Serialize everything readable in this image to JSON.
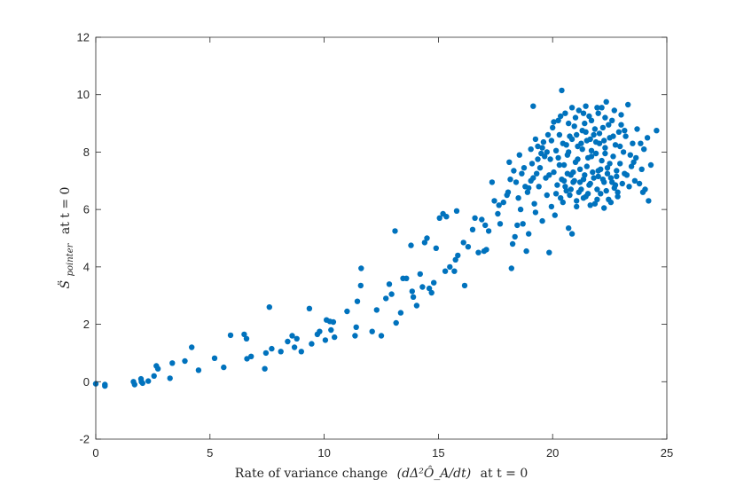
{
  "chart_data": {
    "type": "scatter",
    "title": "",
    "xlabel": "Rate of variance change",
    "xlabel_math": "(dΔ²Ô_A/dt)",
    "xlabel_suffix": "at t = 0",
    "ylabel_prefix": "S̈",
    "ylabel_sub": "pointer",
    "ylabel_suffix": "at t = 0",
    "xlim": [
      0,
      25
    ],
    "ylim": [
      -2,
      12
    ],
    "xticks": [
      "0",
      "5",
      "10",
      "15",
      "20",
      "25"
    ],
    "yticks": [
      "-2",
      "0",
      "2",
      "4",
      "6",
      "8",
      "10",
      "12"
    ],
    "grid": false,
    "marker_color": "#0072BD",
    "points": [
      [
        0.0,
        -0.07
      ],
      [
        0.4,
        -0.1
      ],
      [
        0.4,
        -0.15
      ],
      [
        1.65,
        0.0
      ],
      [
        1.7,
        -0.1
      ],
      [
        1.98,
        0.1
      ],
      [
        2.0,
        0.0
      ],
      [
        2.05,
        -0.05
      ],
      [
        2.3,
        0.02
      ],
      [
        2.55,
        0.2
      ],
      [
        2.65,
        0.55
      ],
      [
        2.72,
        0.45
      ],
      [
        3.25,
        0.12
      ],
      [
        3.35,
        0.65
      ],
      [
        3.9,
        0.72
      ],
      [
        4.2,
        1.2
      ],
      [
        4.5,
        0.4
      ],
      [
        5.2,
        0.82
      ],
      [
        5.6,
        0.5
      ],
      [
        5.9,
        1.62
      ],
      [
        6.5,
        1.65
      ],
      [
        6.6,
        1.5
      ],
      [
        6.62,
        0.8
      ],
      [
        6.8,
        0.88
      ],
      [
        7.4,
        0.45
      ],
      [
        7.45,
        1.0
      ],
      [
        7.6,
        2.6
      ],
      [
        7.7,
        1.15
      ],
      [
        8.1,
        1.05
      ],
      [
        8.4,
        1.4
      ],
      [
        8.6,
        1.6
      ],
      [
        8.7,
        1.2
      ],
      [
        8.8,
        1.5
      ],
      [
        9.0,
        1.05
      ],
      [
        9.35,
        2.55
      ],
      [
        9.45,
        1.32
      ],
      [
        9.7,
        1.65
      ],
      [
        9.8,
        1.75
      ],
      [
        10.05,
        1.45
      ],
      [
        10.1,
        2.15
      ],
      [
        10.25,
        2.1
      ],
      [
        10.3,
        1.8
      ],
      [
        10.4,
        2.08
      ],
      [
        10.45,
        1.55
      ],
      [
        11.0,
        2.45
      ],
      [
        11.35,
        1.6
      ],
      [
        11.4,
        1.9
      ],
      [
        11.45,
        2.8
      ],
      [
        11.6,
        3.35
      ],
      [
        11.62,
        3.95
      ],
      [
        12.1,
        1.75
      ],
      [
        12.3,
        2.5
      ],
      [
        12.5,
        1.6
      ],
      [
        12.7,
        2.9
      ],
      [
        12.85,
        3.4
      ],
      [
        12.95,
        3.05
      ],
      [
        13.1,
        5.25
      ],
      [
        13.15,
        2.05
      ],
      [
        13.35,
        2.4
      ],
      [
        13.45,
        3.6
      ],
      [
        13.6,
        3.6
      ],
      [
        13.8,
        4.75
      ],
      [
        13.85,
        3.15
      ],
      [
        13.9,
        2.95
      ],
      [
        14.05,
        2.65
      ],
      [
        14.2,
        3.75
      ],
      [
        14.3,
        3.3
      ],
      [
        14.4,
        4.85
      ],
      [
        14.5,
        5.0
      ],
      [
        14.6,
        3.25
      ],
      [
        14.7,
        3.1
      ],
      [
        14.8,
        3.45
      ],
      [
        14.9,
        4.65
      ],
      [
        15.05,
        5.7
      ],
      [
        15.2,
        5.85
      ],
      [
        15.3,
        3.85
      ],
      [
        15.35,
        5.75
      ],
      [
        15.5,
        4.0
      ],
      [
        15.7,
        3.85
      ],
      [
        15.75,
        4.25
      ],
      [
        15.8,
        5.95
      ],
      [
        15.85,
        4.4
      ],
      [
        16.1,
        4.85
      ],
      [
        16.15,
        3.35
      ],
      [
        16.3,
        4.7
      ],
      [
        16.5,
        5.3
      ],
      [
        16.6,
        5.7
      ],
      [
        16.75,
        4.5
      ],
      [
        16.9,
        5.65
      ],
      [
        17.0,
        4.55
      ],
      [
        17.05,
        5.45
      ],
      [
        17.1,
        4.6
      ],
      [
        17.2,
        5.25
      ],
      [
        17.35,
        6.95
      ],
      [
        17.45,
        6.3
      ],
      [
        17.6,
        5.85
      ],
      [
        17.65,
        6.15
      ],
      [
        17.7,
        5.5
      ],
      [
        17.85,
        6.25
      ],
      [
        18.0,
        6.5
      ],
      [
        18.1,
        7.65
      ],
      [
        18.2,
        3.95
      ],
      [
        18.25,
        4.8
      ],
      [
        18.35,
        5.05
      ],
      [
        18.45,
        5.45
      ],
      [
        18.5,
        6.4
      ],
      [
        18.55,
        7.9
      ],
      [
        18.6,
        6.0
      ],
      [
        18.7,
        5.5
      ],
      [
        18.75,
        7.45
      ],
      [
        18.8,
        6.8
      ],
      [
        18.85,
        4.55
      ],
      [
        18.9,
        6.6
      ],
      [
        18.95,
        5.15
      ],
      [
        19.05,
        7.0
      ],
      [
        19.1,
        7.6
      ],
      [
        19.15,
        9.6
      ],
      [
        19.2,
        6.2
      ],
      [
        19.25,
        5.9
      ],
      [
        19.3,
        7.25
      ],
      [
        19.35,
        8.2
      ],
      [
        19.4,
        6.8
      ],
      [
        19.5,
        7.95
      ],
      [
        19.55,
        5.6
      ],
      [
        19.6,
        8.35
      ],
      [
        19.7,
        7.1
      ],
      [
        19.75,
        6.5
      ],
      [
        19.8,
        8.6
      ],
      [
        19.85,
        4.5
      ],
      [
        19.9,
        7.75
      ],
      [
        19.95,
        6.1
      ],
      [
        20.0,
        8.85
      ],
      [
        20.05,
        7.3
      ],
      [
        20.1,
        5.8
      ],
      [
        20.15,
        8.05
      ],
      [
        20.2,
        6.85
      ],
      [
        20.25,
        9.1
      ],
      [
        20.3,
        7.55
      ],
      [
        20.35,
        6.4
      ],
      [
        20.4,
        10.15
      ],
      [
        20.45,
        8.3
      ],
      [
        20.5,
        7.0
      ],
      [
        20.55,
        9.35
      ],
      [
        20.6,
        6.65
      ],
      [
        20.65,
        7.9
      ],
      [
        20.7,
        5.35
      ],
      [
        20.75,
        8.55
      ],
      [
        20.8,
        7.2
      ],
      [
        20.85,
        5.15
      ],
      [
        20.9,
        6.95
      ],
      [
        20.95,
        8.9
      ],
      [
        21.0,
        7.65
      ],
      [
        21.05,
        6.3
      ],
      [
        21.1,
        8.2
      ],
      [
        21.15,
        9.45
      ],
      [
        21.2,
        7.4
      ],
      [
        21.25,
        6.7
      ],
      [
        21.3,
        8.75
      ],
      [
        21.35,
        7.05
      ],
      [
        21.4,
        9.0
      ],
      [
        21.45,
        6.45
      ],
      [
        21.5,
        8.4
      ],
      [
        21.55,
        7.8
      ],
      [
        21.6,
        9.25
      ],
      [
        21.65,
        6.9
      ],
      [
        21.7,
        8.05
      ],
      [
        21.75,
        7.3
      ],
      [
        21.8,
        8.6
      ],
      [
        21.85,
        6.2
      ],
      [
        21.9,
        7.95
      ],
      [
        21.95,
        9.55
      ],
      [
        22.0,
        7.15
      ],
      [
        22.05,
        8.3
      ],
      [
        22.1,
        6.55
      ],
      [
        22.15,
        7.7
      ],
      [
        22.2,
        8.85
      ],
      [
        22.25,
        6.95
      ],
      [
        22.3,
        8.15
      ],
      [
        22.35,
        9.75
      ],
      [
        22.4,
        7.45
      ],
      [
        22.45,
        6.35
      ],
      [
        22.5,
        8.5
      ],
      [
        22.55,
        7.1
      ],
      [
        22.6,
        9.1
      ],
      [
        22.65,
        7.85
      ],
      [
        22.7,
        6.75
      ],
      [
        22.75,
        8.25
      ],
      [
        22.8,
        7.35
      ],
      [
        22.85,
        6.6
      ],
      [
        22.9,
        8.7
      ],
      [
        22.95,
        7.6
      ],
      [
        23.0,
        9.3
      ],
      [
        23.05,
        6.9
      ],
      [
        23.1,
        8.0
      ],
      [
        23.15,
        7.25
      ],
      [
        23.2,
        8.55
      ],
      [
        23.3,
        9.65
      ],
      [
        23.35,
        6.8
      ],
      [
        23.4,
        7.9
      ],
      [
        23.5,
        8.3
      ],
      [
        23.6,
        7.0
      ],
      [
        23.7,
        8.8
      ],
      [
        23.8,
        6.9
      ],
      [
        23.9,
        7.4
      ],
      [
        24.0,
        8.1
      ],
      [
        24.05,
        6.7
      ],
      [
        24.15,
        8.5
      ],
      [
        24.3,
        7.55
      ],
      [
        24.55,
        8.75
      ],
      [
        24.2,
        6.3
      ],
      [
        23.95,
        6.6
      ],
      [
        23.55,
        7.65
      ],
      [
        20.25,
        7.8
      ],
      [
        20.5,
        7.55
      ],
      [
        20.7,
        8.0
      ],
      [
        20.9,
        7.3
      ],
      [
        21.1,
        7.75
      ],
      [
        21.3,
        8.1
      ],
      [
        21.5,
        7.5
      ],
      [
        21.7,
        7.85
      ],
      [
        21.9,
        8.35
      ],
      [
        22.1,
        7.4
      ],
      [
        22.3,
        7.95
      ],
      [
        22.5,
        7.6
      ],
      [
        20.3,
        8.6
      ],
      [
        20.6,
        8.25
      ],
      [
        20.85,
        8.45
      ],
      [
        21.05,
        8.6
      ],
      [
        21.25,
        8.3
      ],
      [
        21.45,
        8.7
      ],
      [
        21.65,
        8.45
      ],
      [
        21.85,
        8.8
      ],
      [
        22.05,
        8.65
      ],
      [
        22.25,
        8.4
      ],
      [
        22.45,
        8.95
      ],
      [
        22.65,
        8.55
      ],
      [
        20.4,
        7.05
      ],
      [
        20.65,
        7.25
      ],
      [
        20.95,
        7.0
      ],
      [
        21.2,
        6.95
      ],
      [
        21.4,
        7.2
      ],
      [
        21.6,
        6.85
      ],
      [
        21.8,
        7.1
      ],
      [
        22.0,
        7.35
      ],
      [
        22.2,
        7.05
      ],
      [
        22.4,
        7.25
      ],
      [
        22.6,
        6.95
      ],
      [
        22.8,
        7.15
      ],
      [
        20.15,
        6.55
      ],
      [
        20.45,
        6.25
      ],
      [
        20.75,
        6.5
      ],
      [
        21.05,
        6.1
      ],
      [
        21.35,
        6.4
      ],
      [
        21.65,
        6.15
      ],
      [
        21.95,
        6.35
      ],
      [
        22.25,
        6.05
      ],
      [
        22.55,
        6.25
      ],
      [
        22.85,
        6.45
      ],
      [
        20.05,
        9.05
      ],
      [
        20.35,
        9.25
      ],
      [
        20.7,
        9.0
      ],
      [
        21.0,
        9.2
      ],
      [
        21.35,
        9.35
      ],
      [
        21.7,
        9.1
      ],
      [
        22.0,
        9.35
      ],
      [
        22.3,
        9.2
      ],
      [
        22.7,
        9.45
      ],
      [
        23.0,
        8.95
      ],
      [
        19.45,
        7.45
      ],
      [
        19.65,
        7.85
      ],
      [
        19.85,
        7.2
      ],
      [
        19.55,
        8.15
      ],
      [
        19.75,
        8.0
      ],
      [
        19.95,
        8.4
      ],
      [
        19.35,
        7.75
      ],
      [
        19.25,
        8.45
      ],
      [
        19.15,
        7.1
      ],
      [
        19.05,
        8.1
      ],
      [
        18.95,
        6.75
      ],
      [
        18.65,
        7.25
      ],
      [
        18.4,
        6.95
      ],
      [
        18.3,
        7.35
      ],
      [
        18.15,
        7.05
      ],
      [
        18.05,
        6.6
      ],
      [
        20.55,
        6.8
      ],
      [
        20.8,
        6.7
      ],
      [
        21.15,
        6.6
      ],
      [
        21.55,
        6.55
      ],
      [
        21.95,
        6.7
      ],
      [
        22.35,
        6.65
      ],
      [
        22.75,
        6.85
      ],
      [
        23.25,
        7.2
      ],
      [
        23.45,
        7.5
      ],
      [
        23.65,
        7.8
      ],
      [
        23.85,
        8.3
      ],
      [
        23.15,
        8.75
      ],
      [
        22.95,
        8.2
      ],
      [
        22.15,
        9.55
      ],
      [
        21.45,
        9.6
      ],
      [
        20.85,
        9.55
      ]
    ]
  }
}
